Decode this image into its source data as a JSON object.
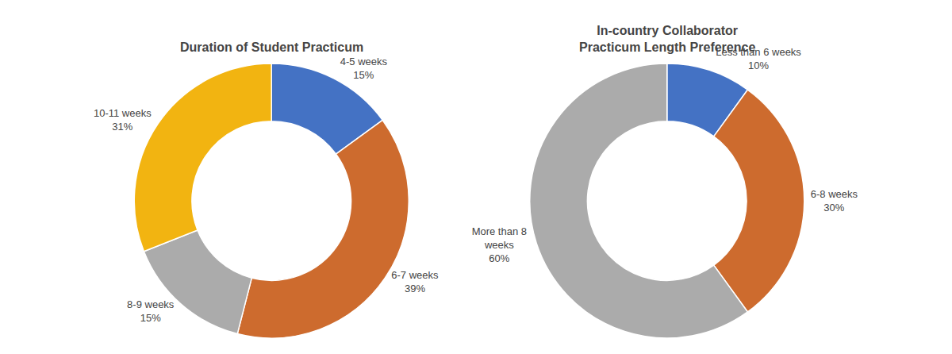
{
  "chart_data": [
    {
      "type": "donut",
      "title": "Duration of Student Practicum",
      "categories": [
        "4-5 weeks",
        "6-7 weeks",
        "8-9 weeks",
        "10-11 weeks"
      ],
      "values": [
        15,
        39,
        15,
        31
      ],
      "value_labels": [
        "15%",
        "39%",
        "15%",
        "31%"
      ],
      "colors": [
        "#4472C4",
        "#CD6B2E",
        "#ABABAB",
        "#F2B411"
      ],
      "data_labels": true
    },
    {
      "type": "donut",
      "title": "In-country Collaborator\nPracticum Length Preference",
      "categories": [
        "Less than 6 weeks",
        "6-8 weeks",
        "More than 8\nweeks"
      ],
      "values": [
        10,
        30,
        60
      ],
      "value_labels": [
        "10%",
        "30%",
        "60%"
      ],
      "colors": [
        "#4472C4",
        "#CD6B2E",
        "#ABABAB"
      ],
      "data_labels": true
    }
  ]
}
